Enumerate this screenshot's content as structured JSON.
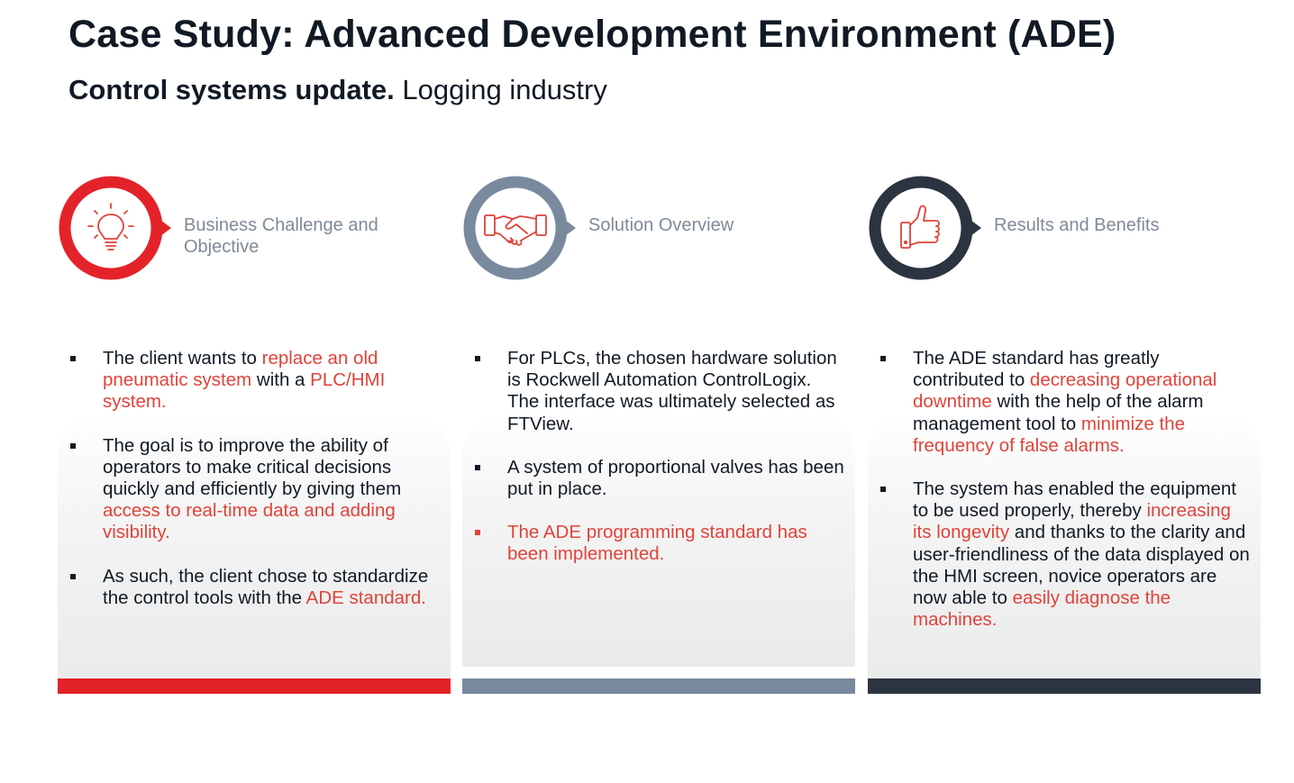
{
  "header": {
    "title": "Case Study: Advanced Development Environment (ADE)",
    "subtitle_bold": "Control systems update.",
    "subtitle_light": "Logging industry"
  },
  "colors": {
    "red": "#e32329",
    "slate": "#7a8a9e",
    "navy": "#2b3440",
    "highlight": "#e0433a",
    "heading_gray": "#7f8a96"
  },
  "columns": [
    {
      "icon": "lightbulb-icon",
      "heading": "Business Challenge and Objective",
      "bullets": [
        {
          "segments": [
            "The client wants to ",
            "replace an old pneumatic system",
            " with a ",
            "PLC/HMI system."
          ]
        },
        {
          "segments": [
            "The goal is to improve the ability of operators to make critical decisions quickly and efficiently by giving them ",
            "access to real-time data and adding visibility."
          ]
        },
        {
          "segments": [
            "As such, the client chose to standardize the control tools with the ",
            "ADE standard."
          ]
        }
      ]
    },
    {
      "icon": "handshake-icon",
      "heading": "Solution Overview",
      "bullets": [
        {
          "segments": [
            "For PLCs, the chosen hardware solution is Rockwell Automation ControlLogix. The interface was ultimately selected as FTView."
          ]
        },
        {
          "segments": [
            "A system of proportional valves has been put in place."
          ]
        },
        {
          "segments": [
            "The ADE programming standard has been implemented."
          ]
        }
      ]
    },
    {
      "icon": "thumbs-up-icon",
      "heading": "Results and Benefits",
      "bullets": [
        {
          "segments": [
            "The ADE standard has greatly contributed to ",
            "decreasing operational downtime",
            " with the help of the alarm management tool to ",
            "minimize the frequency of false alarms."
          ]
        },
        {
          "segments": [
            "The system has enabled the equipment to be used properly, thereby ",
            "increasing its longevity",
            " and thanks to the clarity and user-friendliness of the data displayed on the HMI screen, novice operators are now able to ",
            "easily diagnose the machines."
          ]
        }
      ]
    }
  ]
}
